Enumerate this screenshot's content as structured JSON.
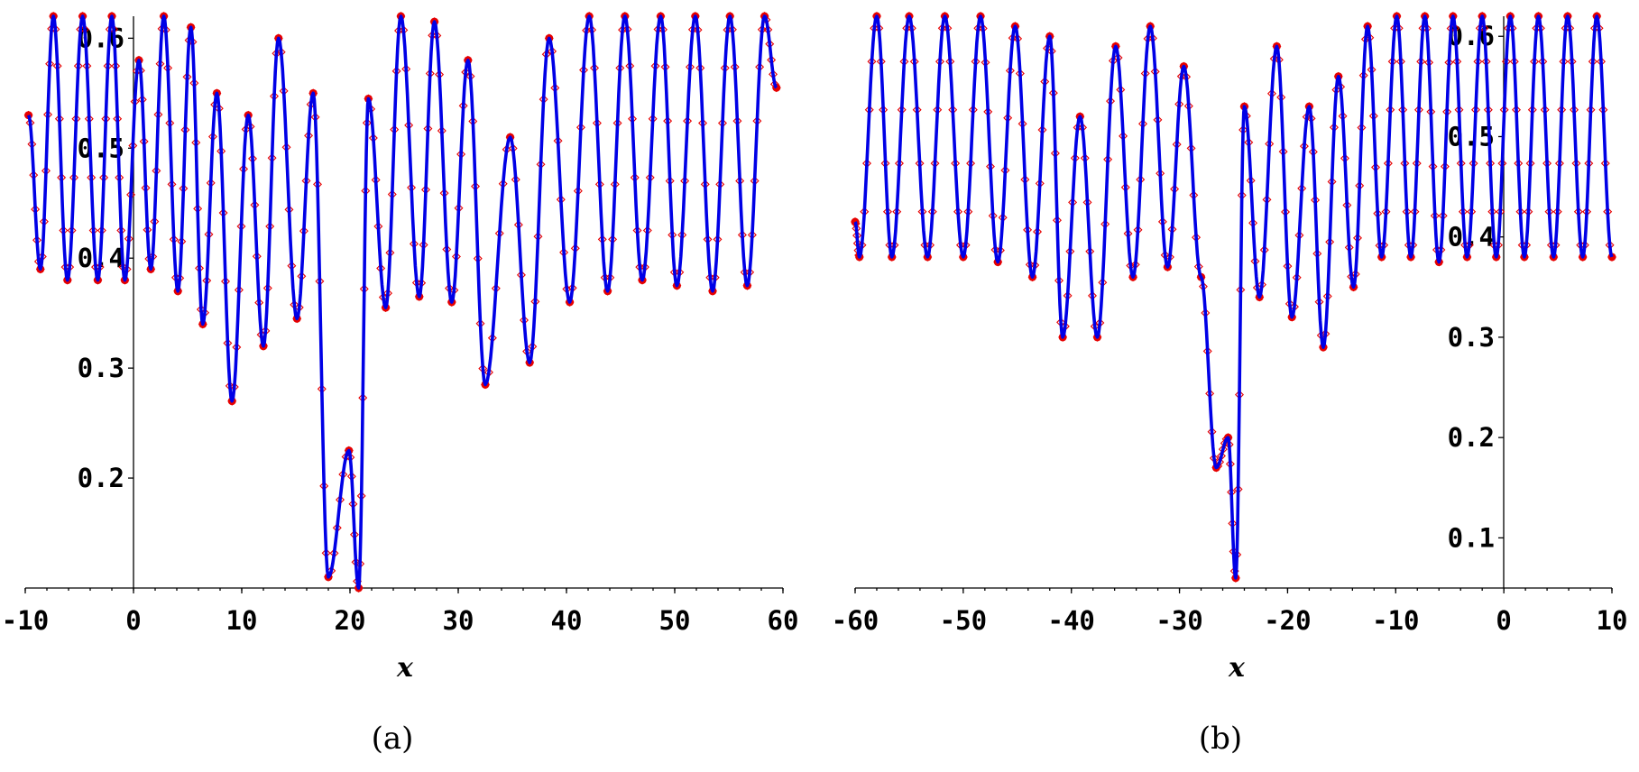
{
  "chart_data": [
    {
      "id": "a",
      "type": "line",
      "caption": "(a)",
      "xlabel": "x",
      "xlim": [
        -10,
        60
      ],
      "ylim": [
        0.1,
        0.62
      ],
      "xticks": [
        "-10",
        "0",
        "10",
        "20",
        "30",
        "40",
        "50",
        "60"
      ],
      "xtick_values": [
        -10,
        0,
        10,
        20,
        30,
        40,
        50,
        60
      ],
      "yticks": [
        "0.2",
        "0.3",
        "0.4",
        "0.5",
        "0.6"
      ],
      "ytick_values": [
        0.2,
        0.3,
        0.4,
        0.5,
        0.6
      ],
      "colors": {
        "line": "#0000e6",
        "markers": "#e60000"
      },
      "series": [
        {
          "kind": "line",
          "x": [
            -9.7,
            -8.6,
            -7.4,
            -6.1,
            -4.7,
            -3.3,
            -2.0,
            -0.8,
            0.5,
            1.6,
            2.8,
            4.1,
            5.3,
            6.4,
            7.7,
            9.1,
            10.6,
            12.0,
            13.4,
            15.1,
            16.6,
            18.0,
            19.9,
            20.8,
            21.7,
            23.3,
            24.7,
            26.4,
            27.8,
            29.4,
            30.9,
            32.5,
            34.8,
            36.6,
            38.4,
            40.3,
            42.1,
            43.8,
            45.4,
            47.0,
            48.7,
            50.2,
            51.9,
            53.5,
            55.1,
            56.7,
            58.3,
            59.4
          ],
          "y": [
            0.53,
            0.39,
            0.62,
            0.38,
            0.62,
            0.38,
            0.62,
            0.38,
            0.58,
            0.39,
            0.62,
            0.37,
            0.61,
            0.34,
            0.55,
            0.27,
            0.53,
            0.32,
            0.6,
            0.345,
            0.55,
            0.11,
            0.225,
            0.1,
            0.545,
            0.355,
            0.62,
            0.365,
            0.615,
            0.36,
            0.58,
            0.285,
            0.51,
            0.305,
            0.6,
            0.36,
            0.62,
            0.37,
            0.62,
            0.38,
            0.62,
            0.375,
            0.62,
            0.37,
            0.62,
            0.375,
            0.62,
            0.555
          ]
        }
      ]
    },
    {
      "id": "b",
      "type": "line",
      "caption": "(b)",
      "xlabel": "x",
      "xlim": [
        -60,
        10
      ],
      "ylim": [
        0.05,
        0.62
      ],
      "xticks": [
        "-60",
        "-50",
        "-40",
        "-30",
        "-20",
        "-10",
        "0",
        "10"
      ],
      "xtick_values": [
        -60,
        -50,
        -40,
        -30,
        -20,
        -10,
        0,
        10
      ],
      "yticks": [
        "0.1",
        "0.2",
        "0.3",
        "0.4",
        "0.5",
        "0.6"
      ],
      "ytick_values": [
        0.1,
        0.2,
        0.3,
        0.4,
        0.5,
        0.6
      ],
      "colors": {
        "line": "#0000e6",
        "markers": "#e60000"
      },
      "series": [
        {
          "kind": "line",
          "x": [
            -60.0,
            -59.6,
            -58.0,
            -56.6,
            -55.0,
            -53.3,
            -51.7,
            -50.0,
            -48.4,
            -46.8,
            -45.2,
            -43.6,
            -42.0,
            -40.8,
            -39.2,
            -37.6,
            -35.9,
            -34.3,
            -32.7,
            -31.1,
            -29.6,
            -28.0,
            -26.6,
            -25.5,
            -24.8,
            -24.0,
            -22.6,
            -21.0,
            -19.6,
            -18.0,
            -16.7,
            -15.3,
            -13.9,
            -12.6,
            -11.3,
            -9.9,
            -8.6,
            -7.3,
            -6.0,
            -4.7,
            -3.4,
            -2.0,
            -0.7,
            0.6,
            1.9,
            3.2,
            4.6,
            5.9,
            7.3,
            8.6,
            10.0
          ],
          "y": [
            0.415,
            0.38,
            0.62,
            0.38,
            0.62,
            0.38,
            0.62,
            0.38,
            0.62,
            0.375,
            0.61,
            0.36,
            0.6,
            0.3,
            0.52,
            0.3,
            0.59,
            0.36,
            0.61,
            0.37,
            0.57,
            0.36,
            0.17,
            0.2,
            0.06,
            0.53,
            0.34,
            0.59,
            0.32,
            0.53,
            0.29,
            0.56,
            0.35,
            0.61,
            0.38,
            0.62,
            0.38,
            0.62,
            0.375,
            0.62,
            0.38,
            0.62,
            0.38,
            0.62,
            0.38,
            0.62,
            0.38,
            0.62,
            0.38,
            0.62,
            0.38
          ]
        }
      ]
    }
  ]
}
